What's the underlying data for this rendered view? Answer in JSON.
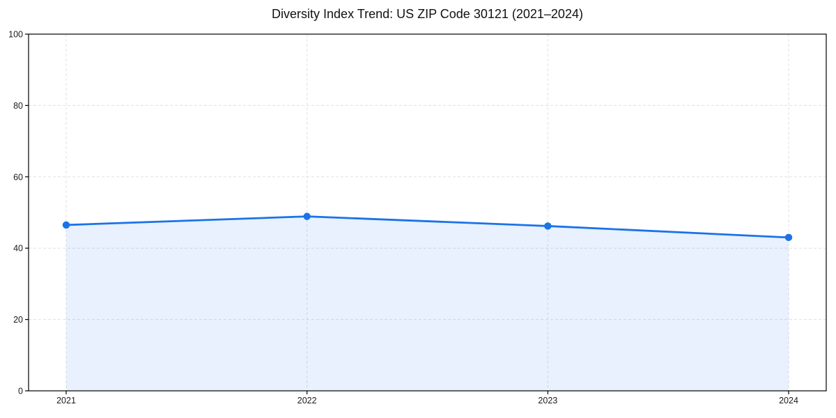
{
  "chart_data": {
    "type": "area",
    "title": "Diversity Index Trend: US ZIP Code 30121 (2021–2024)",
    "xlabel": "",
    "ylabel": "",
    "categories": [
      "2021",
      "2022",
      "2023",
      "2024"
    ],
    "values": [
      46.5,
      48.9,
      46.2,
      43.0
    ],
    "ylim": [
      0,
      100
    ],
    "yticks": [
      0,
      20,
      40,
      60,
      80,
      100
    ],
    "grid": true,
    "grid_style": "dashed",
    "legend": "none",
    "colors": {
      "line": "#1a73e8",
      "marker": "#1a73e8",
      "fill": "rgba(26,115,232,0.10)",
      "grid": "#e0e0e0",
      "axis": "#000000",
      "tick_label": "#1a1a1a",
      "title": "#111111",
      "background": "#ffffff"
    }
  }
}
